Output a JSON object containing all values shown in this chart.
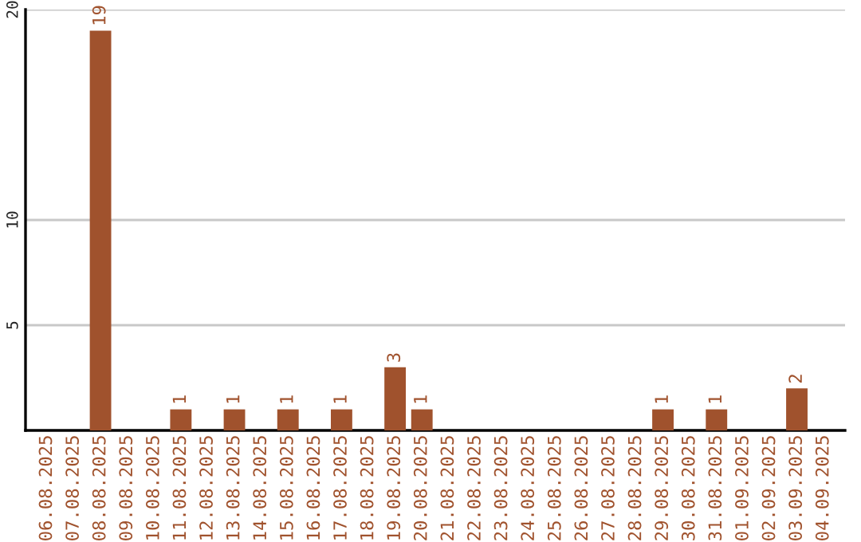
{
  "chart_data": {
    "type": "bar",
    "categories": [
      "06.08.2025",
      "07.08.2025",
      "08.08.2025",
      "09.08.2025",
      "10.08.2025",
      "11.08.2025",
      "12.08.2025",
      "13.08.2025",
      "14.08.2025",
      "15.08.2025",
      "16.08.2025",
      "17.08.2025",
      "18.08.2025",
      "19.08.2025",
      "20.08.2025",
      "21.08.2025",
      "22.08.2025",
      "23.08.2025",
      "24.08.2025",
      "25.08.2025",
      "26.08.2025",
      "27.08.2025",
      "28.08.2025",
      "29.08.2025",
      "30.08.2025",
      "31.08.2025",
      "01.09.2025",
      "02.09.2025",
      "03.09.2025",
      "04.09.2025"
    ],
    "values": [
      0,
      0,
      19,
      0,
      0,
      1,
      0,
      1,
      0,
      1,
      0,
      1,
      0,
      3,
      1,
      0,
      0,
      0,
      0,
      0,
      0,
      0,
      0,
      1,
      0,
      1,
      0,
      0,
      2,
      0
    ],
    "value_labels": [
      null,
      null,
      "19",
      null,
      null,
      "1",
      null,
      "1",
      null,
      "1",
      null,
      "1",
      null,
      "3",
      "1",
      null,
      null,
      null,
      null,
      null,
      null,
      null,
      null,
      "1",
      null,
      "1",
      null,
      null,
      "2",
      null
    ],
    "color": "#a0522d",
    "ylim": [
      0,
      20
    ],
    "yticks": [
      5,
      10,
      20
    ],
    "grid": "y"
  }
}
